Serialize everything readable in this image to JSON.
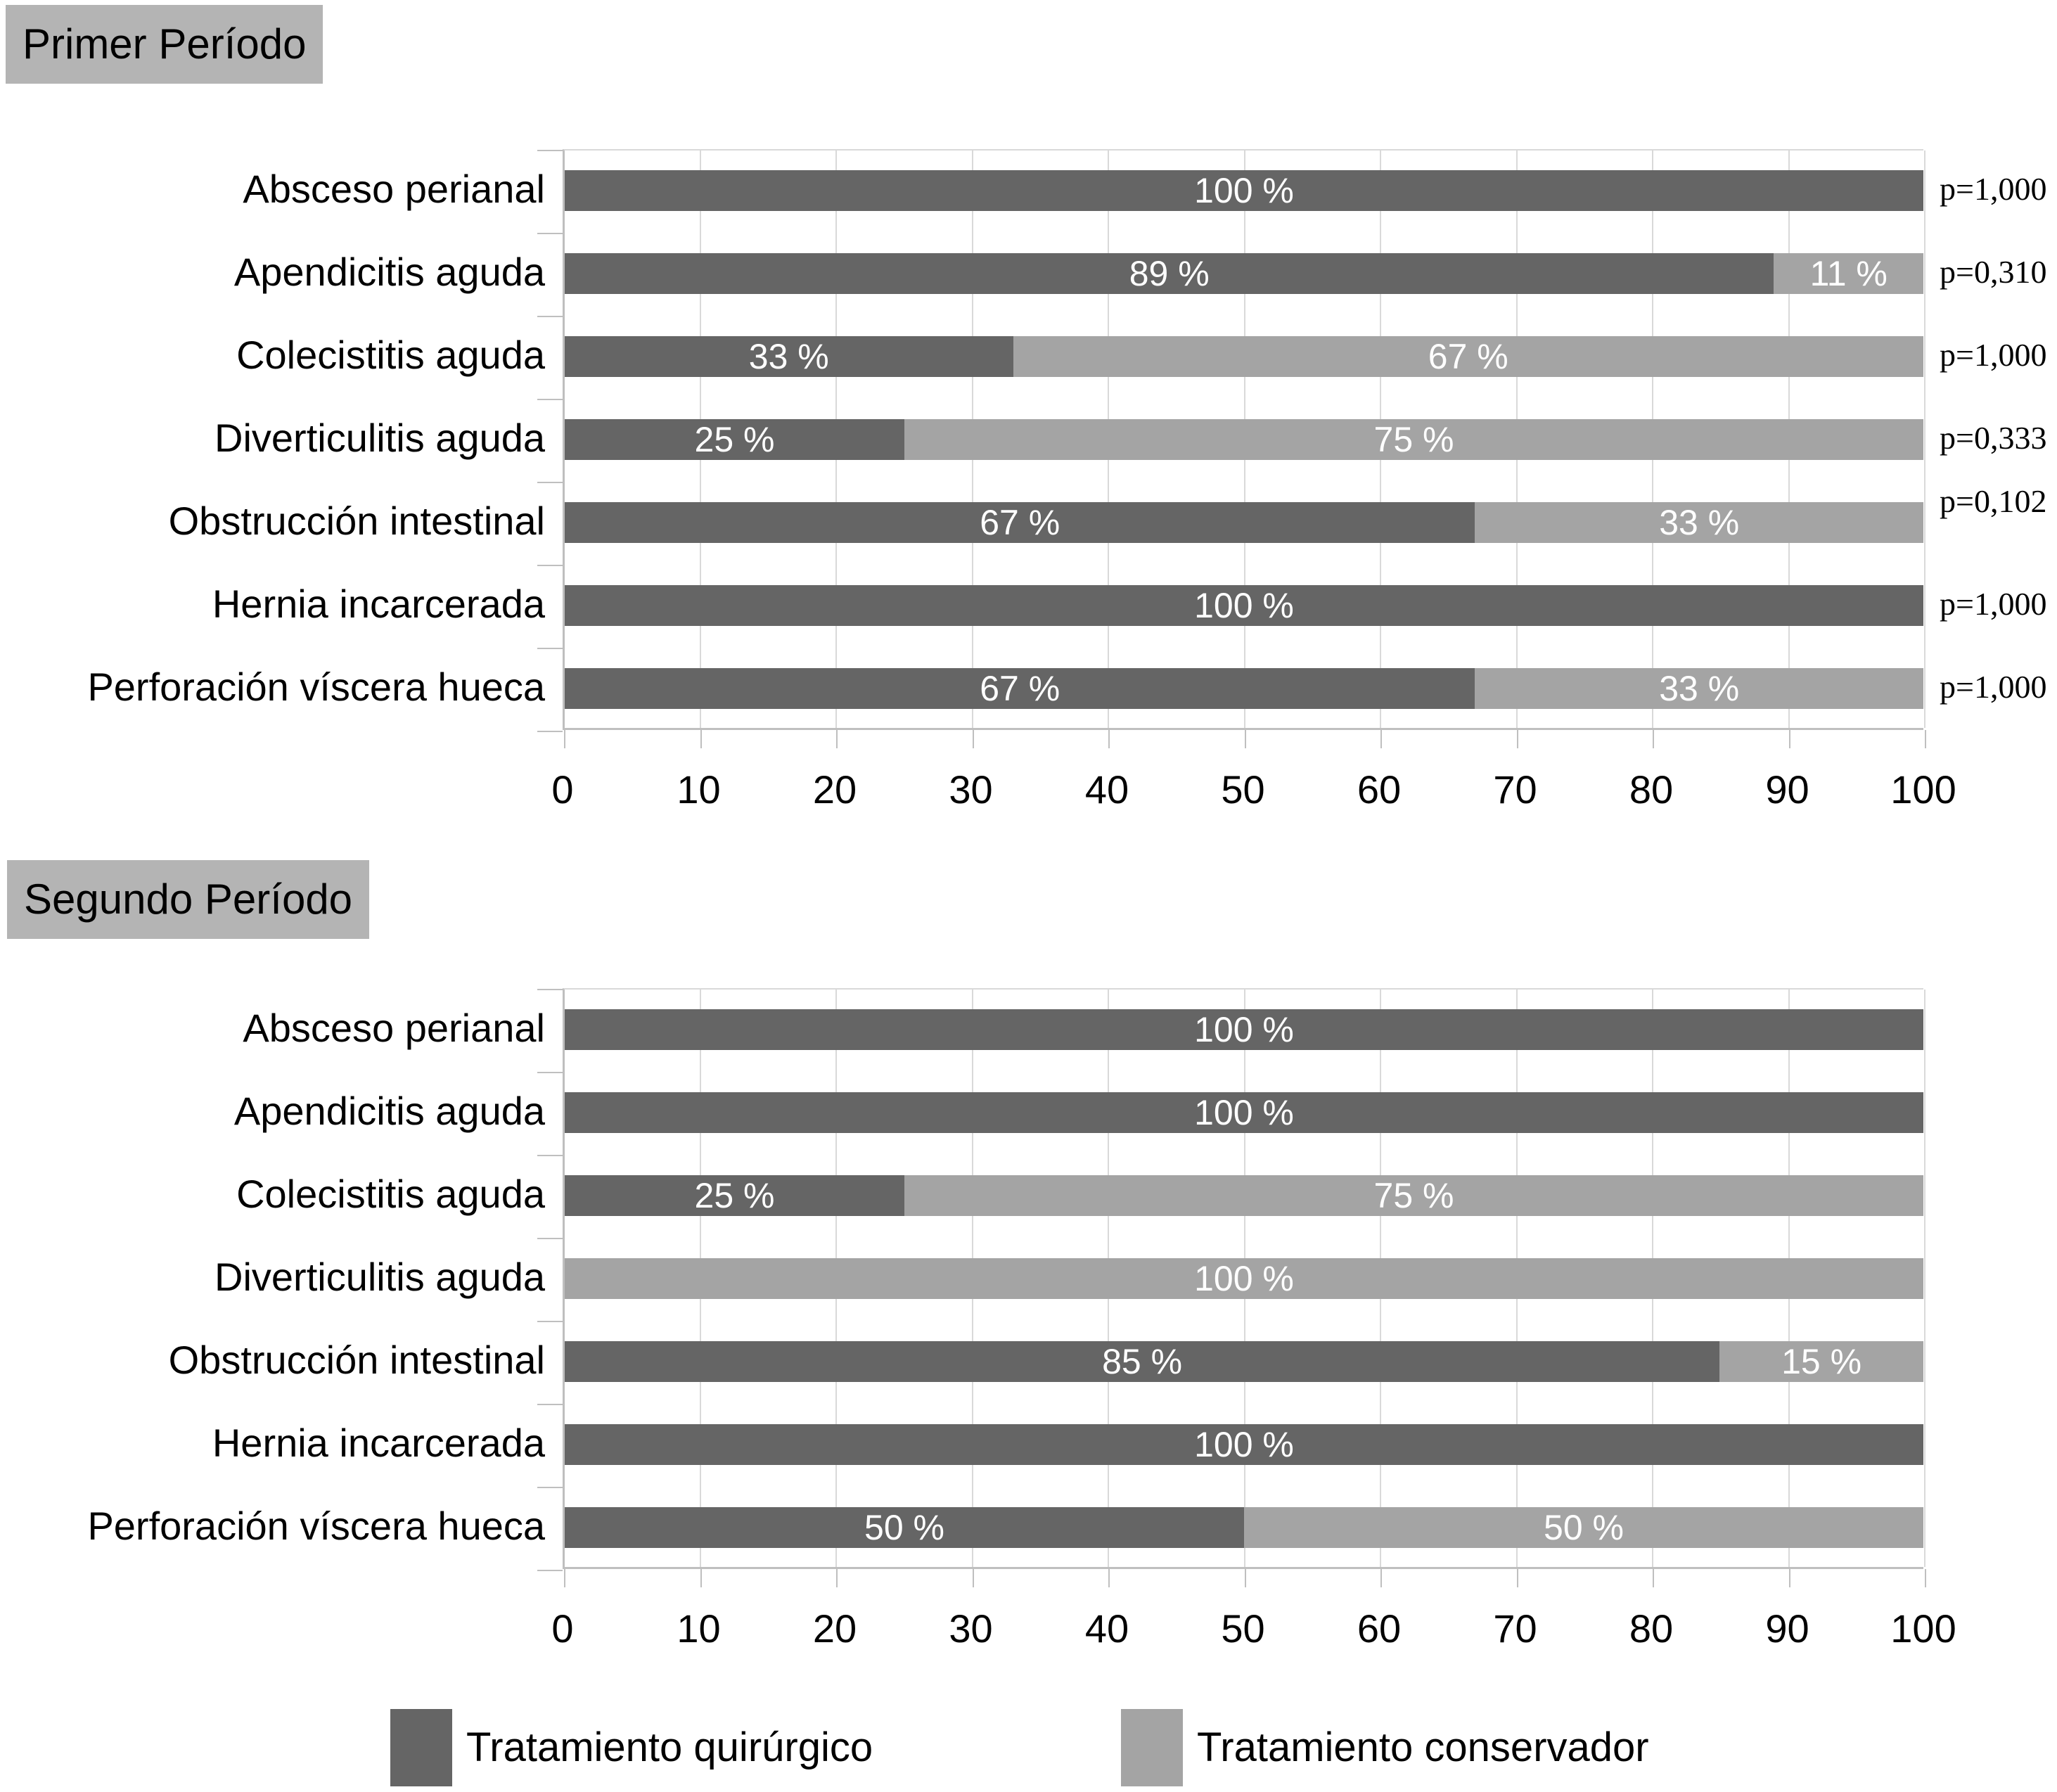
{
  "titles": {
    "first": "Primer Período",
    "second": "Segundo Período"
  },
  "colors": {
    "quirurgico": "#656565",
    "conservador": "#a4a4a4",
    "title_background": "#b4b4b4",
    "gridline": "#d9d9d9",
    "axis": "#bfbfbf",
    "bar_label": "#ffffff"
  },
  "legend": {
    "items": [
      {
        "label": "Tratamiento quirúrgico",
        "color": "#656565"
      },
      {
        "label": "Tratamiento conservador",
        "color": "#a4a4a4"
      }
    ]
  },
  "chart_data": [
    {
      "type": "bar",
      "orientation": "horizontal",
      "stacked": true,
      "title": "Primer Período",
      "categories": [
        "Absceso perianal",
        "Apendicitis aguda",
        "Colecistitis aguda",
        "Diverticulitis aguda",
        "Obstrucción intestinal",
        "Hernia incarcerada",
        "Perforación víscera hueca"
      ],
      "series": [
        {
          "name": "Tratamiento quirúrgico",
          "values": [
            100,
            89,
            33,
            25,
            67,
            100,
            67
          ]
        },
        {
          "name": "Tratamiento conservador",
          "values": [
            0,
            11,
            67,
            75,
            33,
            0,
            33
          ]
        }
      ],
      "bar_label_suffix": " %",
      "p_values": [
        "p=1,000",
        "p=0,310",
        "p=1,000",
        "p=0,333",
        "p=0,102",
        "p=1,000",
        "p=1,000"
      ],
      "xlim": [
        0,
        100
      ],
      "x_ticks": [
        0,
        10,
        20,
        30,
        40,
        50,
        60,
        70,
        80,
        90,
        100
      ],
      "grid": true,
      "legend_position": "none"
    },
    {
      "type": "bar",
      "orientation": "horizontal",
      "stacked": true,
      "title": "Segundo Período",
      "categories": [
        "Absceso perianal",
        "Apendicitis aguda",
        "Colecistitis aguda",
        "Diverticulitis aguda",
        "Obstrucción intestinal",
        "Hernia incarcerada",
        "Perforación víscera hueca"
      ],
      "series": [
        {
          "name": "Tratamiento quirúrgico",
          "values": [
            100,
            100,
            25,
            0,
            85,
            100,
            50
          ]
        },
        {
          "name": "Tratamiento conservador",
          "values": [
            0,
            0,
            75,
            100,
            15,
            0,
            50
          ]
        }
      ],
      "bar_label_suffix": " %",
      "p_values": null,
      "xlim": [
        0,
        100
      ],
      "x_ticks": [
        0,
        10,
        20,
        30,
        40,
        50,
        60,
        70,
        80,
        90,
        100
      ],
      "grid": true,
      "legend_position": "bottom"
    }
  ]
}
